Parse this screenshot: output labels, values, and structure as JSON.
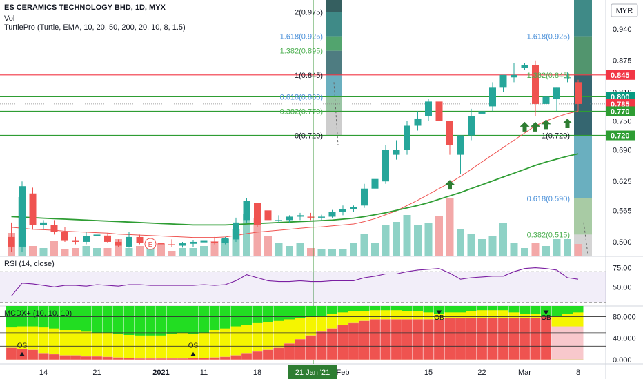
{
  "legend": {
    "title": "ES CERAMICS TECHNOLOGY BHD, 1D, MYX",
    "vol": "Vol",
    "turtle": "TurtlePro (Turtle, EMA, 10, 20, 50, 200, 20, 10, 8, 1.5)",
    "rsi": "RSI (14, close)",
    "mcdx": "MCDX+ (10, 10, 10)"
  },
  "currency": "MYR",
  "crosshair_date": "21 Jan '21",
  "chart_data": [
    {
      "type": "candlestick",
      "ylim": [
        0.47,
        1.0
      ],
      "y_ticks": [
        "0.940",
        "0.875",
        "0.810",
        "0.750",
        "0.690",
        "0.625",
        "0.565",
        "0.500"
      ],
      "x_ticks": [
        {
          "label": "14",
          "i": 3
        },
        {
          "label": "21",
          "i": 8
        },
        {
          "label": "2021",
          "i": 14
        },
        {
          "label": "11",
          "i": 18
        },
        {
          "label": "18",
          "i": 23
        },
        {
          "label": "Feb",
          "i": 31
        },
        {
          "label": "15",
          "i": 39
        },
        {
          "label": "22",
          "i": 44
        },
        {
          "label": "Mar",
          "i": 48
        },
        {
          "label": "8",
          "i": 53
        }
      ],
      "price_labels": [
        {
          "value": "0.845",
          "color": "#f23645"
        },
        {
          "value": "0.800",
          "color": "#089981"
        },
        {
          "value": "0.785",
          "color": "#f23645"
        },
        {
          "value": "0.770",
          "color": "#2e9d33"
        },
        {
          "value": "0.720",
          "color": "#2e9d33"
        }
      ],
      "fib_left": [
        {
          "label": "2(0.975)",
          "y": 0.975,
          "color": "#131722"
        },
        {
          "label": "1.618(0.925)",
          "y": 0.925,
          "color": "#4a90d9"
        },
        {
          "label": "1.382(0.895)",
          "y": 0.895,
          "color": "#4caf50"
        },
        {
          "label": "1(0.845)",
          "y": 0.845,
          "color": "#131722"
        },
        {
          "label": "0.618(0.800)",
          "y": 0.8,
          "color": "#4a90d9"
        },
        {
          "label": "0.382(0.770)",
          "y": 0.77,
          "color": "#4caf50"
        },
        {
          "label": "0(0.720)",
          "y": 0.72,
          "color": "#131722"
        }
      ],
      "fib_right": [
        {
          "label": "1.618(0.925)",
          "y": 0.925,
          "color": "#4a90d9"
        },
        {
          "label": "1.382(0.845)",
          "y": 0.845,
          "color": "#4caf50"
        },
        {
          "label": "1(0.720)",
          "y": 0.72,
          "color": "#131722"
        },
        {
          "label": "0.618(0.590)",
          "y": 0.59,
          "color": "#4a90d9"
        },
        {
          "label": "0.382(0.515)",
          "y": 0.515,
          "color": "#4caf50"
        }
      ],
      "horizontal_lines": [
        {
          "y": 0.845,
          "color": "#f23645"
        },
        {
          "y": 0.8,
          "color": "#2e9d33"
        },
        {
          "y": 0.77,
          "color": "#2e9d33"
        },
        {
          "y": 0.72,
          "color": "#2e9d33"
        }
      ],
      "candles": [
        {
          "o": 0.51,
          "h": 0.54,
          "l": 0.48,
          "c": 0.49
        },
        {
          "o": 0.49,
          "h": 0.625,
          "l": 0.48,
          "c": 0.615
        },
        {
          "o": 0.6,
          "h": 0.612,
          "l": 0.525,
          "c": 0.535
        },
        {
          "o": 0.535,
          "h": 0.545,
          "l": 0.525,
          "c": 0.54
        },
        {
          "o": 0.535,
          "h": 0.545,
          "l": 0.515,
          "c": 0.52
        },
        {
          "o": 0.52,
          "h": 0.53,
          "l": 0.5,
          "c": 0.502
        },
        {
          "o": 0.502,
          "h": 0.51,
          "l": 0.495,
          "c": 0.5
        },
        {
          "o": 0.5,
          "h": 0.52,
          "l": 0.495,
          "c": 0.512
        },
        {
          "o": 0.512,
          "h": 0.52,
          "l": 0.508,
          "c": 0.515
        },
        {
          "o": 0.513,
          "h": 0.518,
          "l": 0.498,
          "c": 0.5
        },
        {
          "o": 0.5,
          "h": 0.505,
          "l": 0.49,
          "c": 0.492
        },
        {
          "o": 0.49,
          "h": 0.52,
          "l": 0.488,
          "c": 0.51
        },
        {
          "o": 0.51,
          "h": 0.515,
          "l": 0.495,
          "c": 0.498
        },
        {
          "o": 0.498,
          "h": 0.505,
          "l": 0.49,
          "c": 0.5
        },
        {
          "o": 0.497,
          "h": 0.505,
          "l": 0.49,
          "c": 0.495
        },
        {
          "o": 0.495,
          "h": 0.505,
          "l": 0.49,
          "c": 0.493
        },
        {
          "o": 0.492,
          "h": 0.5,
          "l": 0.488,
          "c": 0.497
        },
        {
          "o": 0.496,
          "h": 0.503,
          "l": 0.49,
          "c": 0.5
        },
        {
          "o": 0.499,
          "h": 0.505,
          "l": 0.492,
          "c": 0.502
        },
        {
          "o": 0.5,
          "h": 0.51,
          "l": 0.495,
          "c": 0.498
        },
        {
          "o": 0.498,
          "h": 0.51,
          "l": 0.495,
          "c": 0.508
        },
        {
          "o": 0.505,
          "h": 0.55,
          "l": 0.5,
          "c": 0.54
        },
        {
          "o": 0.545,
          "h": 0.59,
          "l": 0.54,
          "c": 0.585
        },
        {
          "o": 0.58,
          "h": 0.58,
          "l": 0.53,
          "c": 0.535
        },
        {
          "o": 0.565,
          "h": 0.57,
          "l": 0.54,
          "c": 0.545
        },
        {
          "o": 0.545,
          "h": 0.555,
          "l": 0.54,
          "c": 0.545
        },
        {
          "o": 0.545,
          "h": 0.555,
          "l": 0.54,
          "c": 0.552
        },
        {
          "o": 0.552,
          "h": 0.56,
          "l": 0.545,
          "c": 0.555
        },
        {
          "o": 0.552,
          "h": 0.56,
          "l": 0.545,
          "c": 0.55
        },
        {
          "o": 0.55,
          "h": 0.556,
          "l": 0.545,
          "c": 0.552
        },
        {
          "o": 0.552,
          "h": 0.566,
          "l": 0.55,
          "c": 0.562
        },
        {
          "o": 0.562,
          "h": 0.575,
          "l": 0.555,
          "c": 0.568
        },
        {
          "o": 0.568,
          "h": 0.575,
          "l": 0.562,
          "c": 0.572
        },
        {
          "o": 0.575,
          "h": 0.62,
          "l": 0.57,
          "c": 0.61
        },
        {
          "o": 0.61,
          "h": 0.65,
          "l": 0.605,
          "c": 0.63
        },
        {
          "o": 0.625,
          "h": 0.7,
          "l": 0.62,
          "c": 0.69
        },
        {
          "o": 0.68,
          "h": 0.71,
          "l": 0.67,
          "c": 0.69
        },
        {
          "o": 0.69,
          "h": 0.75,
          "l": 0.68,
          "c": 0.74
        },
        {
          "o": 0.74,
          "h": 0.77,
          "l": 0.73,
          "c": 0.755
        },
        {
          "o": 0.76,
          "h": 0.795,
          "l": 0.75,
          "c": 0.79
        },
        {
          "o": 0.79,
          "h": 0.79,
          "l": 0.74,
          "c": 0.75
        },
        {
          "o": 0.75,
          "h": 0.75,
          "l": 0.68,
          "c": 0.7
        },
        {
          "o": 0.68,
          "h": 0.72,
          "l": 0.64,
          "c": 0.72
        },
        {
          "o": 0.72,
          "h": 0.775,
          "l": 0.71,
          "c": 0.76
        },
        {
          "o": 0.765,
          "h": 0.77,
          "l": 0.765,
          "c": 0.77
        },
        {
          "o": 0.78,
          "h": 0.83,
          "l": 0.77,
          "c": 0.82
        },
        {
          "o": 0.82,
          "h": 0.845,
          "l": 0.81,
          "c": 0.845
        },
        {
          "o": 0.84,
          "h": 0.87,
          "l": 0.83,
          "c": 0.845
        },
        {
          "o": 0.86,
          "h": 0.87,
          "l": 0.855,
          "c": 0.865
        },
        {
          "o": 0.865,
          "h": 0.875,
          "l": 0.76,
          "c": 0.785
        },
        {
          "o": 0.785,
          "h": 0.81,
          "l": 0.77,
          "c": 0.8
        },
        {
          "o": 0.795,
          "h": 0.82,
          "l": 0.77,
          "c": 0.82
        },
        {
          "o": 0.84,
          "h": 0.85,
          "l": 0.83,
          "c": 0.84
        },
        {
          "o": 0.83,
          "h": 0.835,
          "l": 0.77,
          "c": 0.785
        }
      ],
      "ema_red": [
        0.53,
        0.528,
        0.526,
        0.525,
        0.524,
        0.522,
        0.521,
        0.52,
        0.519,
        0.518,
        0.516,
        0.515,
        0.514,
        0.513,
        0.512,
        0.511,
        0.51,
        0.509,
        0.509,
        0.509,
        0.51,
        0.513,
        0.517,
        0.52,
        0.522,
        0.524,
        0.526,
        0.528,
        0.53,
        0.531,
        0.533,
        0.535,
        0.537,
        0.542,
        0.548,
        0.556,
        0.564,
        0.575,
        0.586,
        0.598,
        0.61,
        0.622,
        0.635,
        0.65,
        0.665,
        0.68,
        0.695,
        0.71,
        0.725,
        0.74,
        0.75,
        0.758,
        0.765,
        0.77
      ],
      "ema_green": [
        0.552,
        0.551,
        0.55,
        0.549,
        0.548,
        0.547,
        0.546,
        0.545,
        0.544,
        0.543,
        0.542,
        0.541,
        0.54,
        0.539,
        0.538,
        0.537,
        0.536,
        0.535,
        0.535,
        0.535,
        0.535,
        0.536,
        0.537,
        0.538,
        0.539,
        0.54,
        0.541,
        0.542,
        0.543,
        0.544,
        0.545,
        0.547,
        0.549,
        0.552,
        0.556,
        0.56,
        0.565,
        0.57,
        0.575,
        0.581,
        0.588,
        0.595,
        0.602,
        0.61,
        0.618,
        0.626,
        0.634,
        0.642,
        0.65,
        0.658,
        0.665,
        0.671,
        0.677,
        0.682
      ],
      "volume": [
        34,
        86,
        15,
        12,
        22,
        10,
        12,
        15,
        12,
        12,
        25,
        12,
        15,
        12,
        18,
        8,
        12,
        12,
        15,
        22,
        25,
        40,
        62,
        55,
        30,
        20,
        15,
        20,
        12,
        10,
        10,
        10,
        20,
        32,
        20,
        45,
        50,
        60,
        45,
        48,
        58,
        85,
        40,
        32,
        25,
        30,
        48,
        20,
        12,
        20,
        15,
        25,
        25,
        18
      ],
      "buy_arrows": [
        {
          "i": 41,
          "y": 0.628
        },
        {
          "i": 48,
          "y": 0.748
        },
        {
          "i": 49,
          "y": 0.748
        },
        {
          "i": 50,
          "y": 0.753
        },
        {
          "i": 52,
          "y": 0.755
        }
      ],
      "earnings_marker": {
        "i": 13,
        "label": "E"
      }
    },
    {
      "type": "line",
      "name": "RSI",
      "ylim": [
        25,
        90
      ],
      "y_ticks": [
        "75.00",
        "50.00"
      ],
      "band": [
        70,
        30
      ],
      "values": [
        38,
        55,
        54,
        52,
        50,
        52,
        52,
        51,
        53,
        52,
        51,
        53,
        53,
        52,
        52,
        52,
        52,
        52,
        53,
        52,
        53,
        58,
        66,
        62,
        58,
        57,
        57,
        58,
        57,
        57,
        58,
        58,
        58,
        62,
        64,
        67,
        67,
        70,
        72,
        73,
        74,
        68,
        60,
        62,
        63,
        64,
        64,
        70,
        74,
        75,
        74,
        72,
        62,
        60
      ]
    },
    {
      "type": "stacked-bar",
      "name": "MCDX+",
      "ylim": [
        -8,
        100
      ],
      "y_ticks": [
        "80.000",
        "40.000",
        "0.000"
      ],
      "ref_lines": [
        80,
        50,
        25
      ],
      "green": [
        100,
        100,
        100,
        100,
        100,
        100,
        100,
        100,
        100,
        100,
        100,
        100,
        100,
        100,
        100,
        100,
        100,
        100,
        100,
        100,
        100,
        100,
        100,
        100,
        100,
        100,
        100,
        100,
        100,
        100,
        100,
        100,
        100,
        100,
        100,
        100,
        100,
        100,
        100,
        100,
        100,
        100,
        100,
        100,
        100,
        100,
        100,
        100,
        100,
        100,
        100,
        100,
        100,
        100
      ],
      "yellow": [
        60,
        62,
        62,
        60,
        58,
        55,
        55,
        52,
        50,
        50,
        48,
        46,
        45,
        45,
        45,
        48,
        50,
        48,
        50,
        55,
        58,
        62,
        65,
        68,
        70,
        72,
        75,
        78,
        80,
        82,
        85,
        88,
        90,
        90,
        92,
        92,
        92,
        90,
        90,
        88,
        85,
        88,
        88,
        90,
        92,
        92,
        92,
        88,
        85,
        85,
        82,
        82,
        85,
        88
      ],
      "red": [
        22,
        20,
        18,
        12,
        10,
        8,
        8,
        6,
        6,
        5,
        4,
        3,
        2,
        2,
        2,
        2,
        2,
        3,
        3,
        4,
        5,
        8,
        12,
        15,
        18,
        22,
        30,
        38,
        45,
        52,
        58,
        65,
        68,
        72,
        75,
        75,
        75,
        75,
        75,
        75,
        75,
        78,
        78,
        78,
        78,
        78,
        78,
        78,
        78,
        78,
        80,
        0,
        0,
        0
      ],
      "pink": [
        0,
        0,
        0,
        0,
        0,
        0,
        0,
        0,
        0,
        0,
        0,
        0,
        0,
        0,
        0,
        0,
        0,
        0,
        0,
        0,
        0,
        0,
        0,
        0,
        0,
        0,
        0,
        0,
        0,
        0,
        0,
        0,
        0,
        0,
        0,
        0,
        0,
        0,
        0,
        0,
        0,
        0,
        0,
        0,
        0,
        0,
        0,
        0,
        0,
        0,
        0,
        62,
        62,
        62
      ],
      "os_markers": [
        {
          "i": 1,
          "label": "OS"
        },
        {
          "i": 17,
          "label": "OS"
        }
      ],
      "ob_markers": [
        {
          "i": 40,
          "label": "OB"
        },
        {
          "i": 50,
          "label": "OB"
        }
      ]
    }
  ]
}
